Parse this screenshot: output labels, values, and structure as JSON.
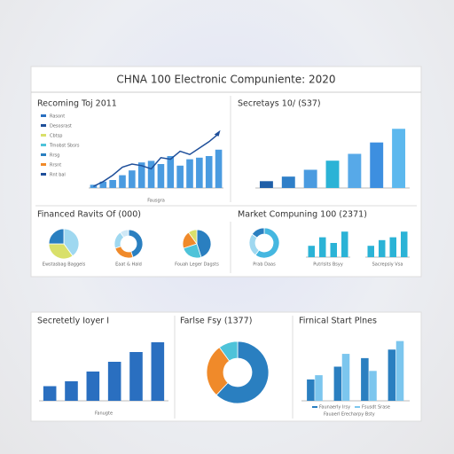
{
  "header": {
    "title": "CHNA 100 Electronic Compuniente: 2020"
  },
  "chart_data": [
    {
      "type": "combo",
      "title": "Recoming Toj 2011",
      "caption": "Fausgra",
      "legend": [
        {
          "name": "Rasont",
          "color": "#2a6fc0"
        },
        {
          "name": "Desosrast",
          "color": "#1f4f9a"
        },
        {
          "name": "Cbtsp",
          "color": "#d9e06a"
        },
        {
          "name": "Trnobst Sbsrs",
          "color": "#4ec3d9"
        },
        {
          "name": "Rrsg",
          "color": "#2a7fc0"
        },
        {
          "name": "Rrsnt",
          "color": "#f08a2a"
        },
        {
          "name": "Rnt bal",
          "color": "#1f4f9a"
        }
      ],
      "ylim": [
        0,
        40
      ],
      "series": [
        {
          "kind": "bar",
          "color": "#4a9be0",
          "values": [
            2,
            4,
            5,
            8,
            11,
            16,
            17,
            15,
            20,
            14,
            18,
            19,
            20,
            24
          ]
        },
        {
          "kind": "line",
          "color": "#1f4f9a",
          "values": [
            1,
            4,
            8,
            13,
            15,
            14,
            12,
            19,
            18,
            23,
            21,
            25,
            29,
            34
          ]
        }
      ]
    },
    {
      "type": "bar",
      "title": "Secretays 10/ (S37)",
      "ylim": [
        0,
        30
      ],
      "values": [
        3,
        5,
        8,
        12,
        15,
        20,
        26
      ],
      "colors": [
        "#1f5fa8",
        "#2f7fc8",
        "#4a9be0",
        "#2bb3d6",
        "#57a9e8",
        "#3d8fe0",
        "#5cb8ee"
      ]
    },
    {
      "type": "pie",
      "title": "Financed Ravits Of (000)",
      "label": "Ewstasbag Baggels",
      "values": [
        40,
        35,
        25
      ],
      "colors": [
        "#9fd8f0",
        "#d9e06a",
        "#2a7fc0"
      ]
    },
    {
      "type": "donut",
      "label": "Eaat & Hald",
      "values": [
        45,
        25,
        20,
        10
      ],
      "colors": [
        "#2a7fc0",
        "#f08a2a",
        "#9fd8f0",
        "#cfe8f6"
      ]
    },
    {
      "type": "pie",
      "label": "Fouah Leger Dagsts",
      "values": [
        45,
        25,
        20,
        10
      ],
      "colors": [
        "#2a7fc0",
        "#4ec3d9",
        "#f08a2a",
        "#d9e06a"
      ]
    },
    {
      "type": "donut",
      "title": "Market Compuning 100 (2371)",
      "label": "Prab Daas",
      "values": [
        60,
        25,
        15
      ],
      "colors": [
        "#45b7e0",
        "#9fd8f0",
        "#2a7fc0"
      ]
    },
    {
      "type": "bar",
      "label": "Putrlsits Bsyy",
      "ylim": [
        0,
        10
      ],
      "values": [
        4,
        7,
        5,
        9
      ],
      "colors": [
        "#2bb3d6",
        "#2bb3d6",
        "#2bb3d6",
        "#2bb3d6"
      ]
    },
    {
      "type": "bar",
      "label": "Sacrepsly Vsa",
      "ylim": [
        0,
        10
      ],
      "values": [
        4,
        6,
        7,
        9
      ],
      "colors": [
        "#2bb3d6",
        "#2bb3d6",
        "#2bb3d6",
        "#2bb3d6"
      ]
    },
    {
      "type": "bar",
      "title": "Secretetly Ioyer I",
      "caption": "Fanugte",
      "ylim": [
        0,
        14
      ],
      "values": [
        3,
        4,
        6,
        8,
        10,
        12
      ],
      "colors": [
        "#2a6fc0",
        "#2a6fc0",
        "#2a6fc0",
        "#2a6fc0",
        "#2a6fc0",
        "#2a6fc0"
      ]
    },
    {
      "type": "donut",
      "title": "Farlse Fsy (1377)",
      "values": [
        62,
        28,
        10
      ],
      "colors": [
        "#2a7fc0",
        "#f08a2a",
        "#4ec3d9"
      ]
    },
    {
      "type": "grouped",
      "title": "Firnical Start Plnes",
      "ylim": [
        0,
        16
      ],
      "series": [
        {
          "name": "Faunaerly Irsy",
          "color": "#2a7fc0",
          "values": [
            5,
            8,
            10,
            12
          ]
        },
        {
          "name": "Fsusdt Srase",
          "color": "#7cc6ee",
          "values": [
            6,
            11,
            7,
            14
          ]
        }
      ],
      "legend_extra": "Fauaerl Erecharpy Bsty"
    }
  ]
}
